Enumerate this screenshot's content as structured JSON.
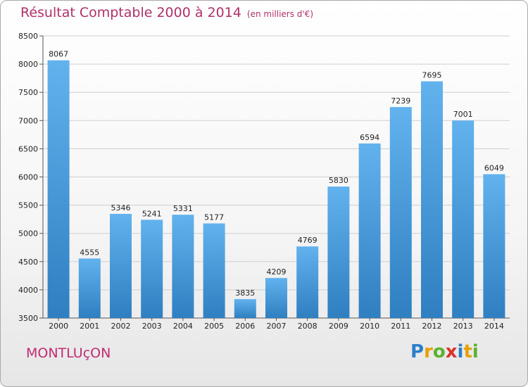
{
  "header": {
    "title": "Résultat Comptable 2000 à 2014",
    "unit": "(en milliers d'€)"
  },
  "footer": {
    "city": "MONTLUçON",
    "logo_letters": [
      {
        "ch": "P",
        "color": "#2b7fc8"
      },
      {
        "ch": "r",
        "color": "#e8a000"
      },
      {
        "ch": "o",
        "color": "#59b22f"
      },
      {
        "ch": "x",
        "color": "#d9322c"
      },
      {
        "ch": "i",
        "color": "#2b7fc8"
      },
      {
        "ch": "t",
        "color": "#e8a000"
      },
      {
        "ch": "i",
        "color": "#59b22f"
      }
    ]
  },
  "colors": {
    "bar_top": "#62b2ee",
    "bar_bottom": "#2f7fc1",
    "title": "#b0306a",
    "city": "#c02c72",
    "grid": "#cfcfcf"
  },
  "chart_data": {
    "type": "bar",
    "title": "Résultat Comptable 2000 à 2014",
    "ylabel": "en milliers d'€",
    "xlabel": "",
    "categories": [
      "2000",
      "2001",
      "2002",
      "2003",
      "2004",
      "2005",
      "2006",
      "2007",
      "2008",
      "2009",
      "2010",
      "2011",
      "2012",
      "2013",
      "2014"
    ],
    "values": [
      8067,
      4555,
      5346,
      5241,
      5331,
      5177,
      3835,
      4209,
      4769,
      5830,
      6594,
      7239,
      7695,
      7001,
      6049
    ],
    "ylim": [
      3500,
      8500
    ],
    "yticks": [
      3500,
      4000,
      4500,
      5000,
      5500,
      6000,
      6500,
      7000,
      7500,
      8000,
      8500
    ],
    "grid": true,
    "data_labels": true
  }
}
